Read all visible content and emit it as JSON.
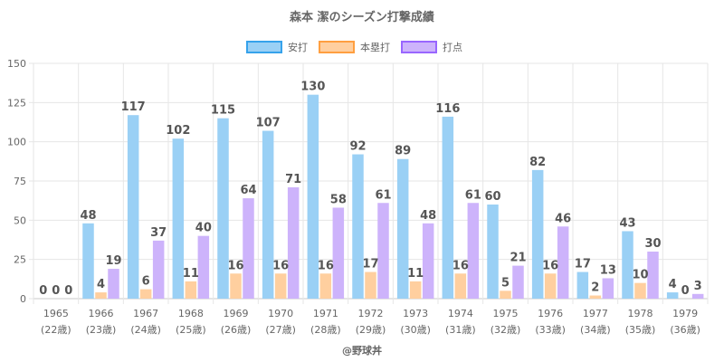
{
  "chart_data": {
    "type": "bar",
    "title": "森本 潔のシーズン打撃成績",
    "xlabel": "",
    "ylabel": "",
    "ylim": [
      0,
      150
    ],
    "yticks": [
      0,
      25,
      50,
      75,
      100,
      125,
      150
    ],
    "grid": true,
    "legend_position": "top",
    "categories": [
      "1965",
      "1966",
      "1967",
      "1968",
      "1969",
      "1970",
      "1971",
      "1972",
      "1973",
      "1974",
      "1975",
      "1976",
      "1977",
      "1978",
      "1979"
    ],
    "category_sublabels": [
      "(22歳)",
      "(23歳)",
      "(24歳)",
      "(25歳)",
      "(26歳)",
      "(27歳)",
      "(28歳)",
      "(29歳)",
      "(30歳)",
      "(31歳)",
      "(32歳)",
      "(33歳)",
      "(34歳)",
      "(35歳)",
      "(36歳)"
    ],
    "series": [
      {
        "name": "安打",
        "fill": "#9ad0f5",
        "stroke": "#36a2eb",
        "values": [
          0,
          48,
          117,
          102,
          115,
          107,
          130,
          92,
          89,
          116,
          60,
          82,
          17,
          43,
          4
        ]
      },
      {
        "name": "本塁打",
        "fill": "#ffcf9f",
        "stroke": "#ff9f40",
        "values": [
          0,
          4,
          6,
          11,
          16,
          16,
          16,
          17,
          11,
          16,
          5,
          16,
          2,
          10,
          0
        ]
      },
      {
        "name": "打点",
        "fill": "#cdb3fb",
        "stroke": "#9966ff",
        "values": [
          0,
          19,
          37,
          40,
          64,
          71,
          58,
          61,
          48,
          61,
          21,
          46,
          13,
          30,
          3
        ]
      }
    ],
    "credit": "@野球丼"
  }
}
